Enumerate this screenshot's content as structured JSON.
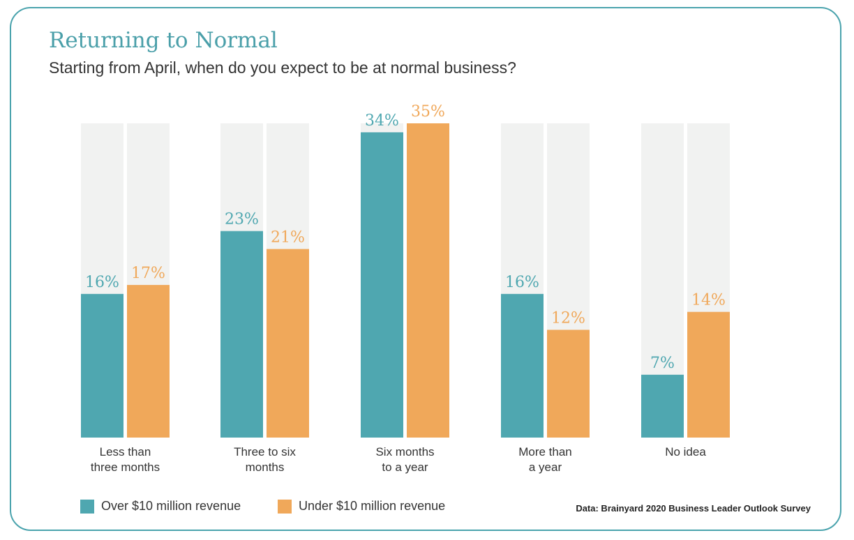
{
  "chart_data": {
    "type": "bar",
    "title": "Returning to Normal",
    "subtitle": "Starting from April, when do you expect to be at normal business?",
    "categories": [
      [
        "Less than",
        "three months"
      ],
      [
        "Three to six",
        "months"
      ],
      [
        "Six months",
        "to a year"
      ],
      [
        "More than",
        "a year"
      ],
      [
        "No idea"
      ]
    ],
    "series": [
      {
        "name": "Over $10 million revenue",
        "color": "#4fa7b0",
        "values": [
          16,
          23,
          34,
          16,
          7
        ],
        "labels": [
          "16%",
          "23%",
          "34%",
          "16%",
          "7%"
        ]
      },
      {
        "name": "Under $10 million revenue",
        "color": "#f0a85a",
        "values": [
          17,
          21,
          35,
          12,
          14
        ],
        "labels": [
          "17%",
          "21%",
          "35%",
          "12%",
          "14%"
        ]
      }
    ],
    "ylim": [
      0,
      35
    ],
    "background_color": "#f1f2f1",
    "source": "Data: Brainyard 2020 Business Leader Outlook Survey"
  },
  "border_color": "#4aa3ad"
}
